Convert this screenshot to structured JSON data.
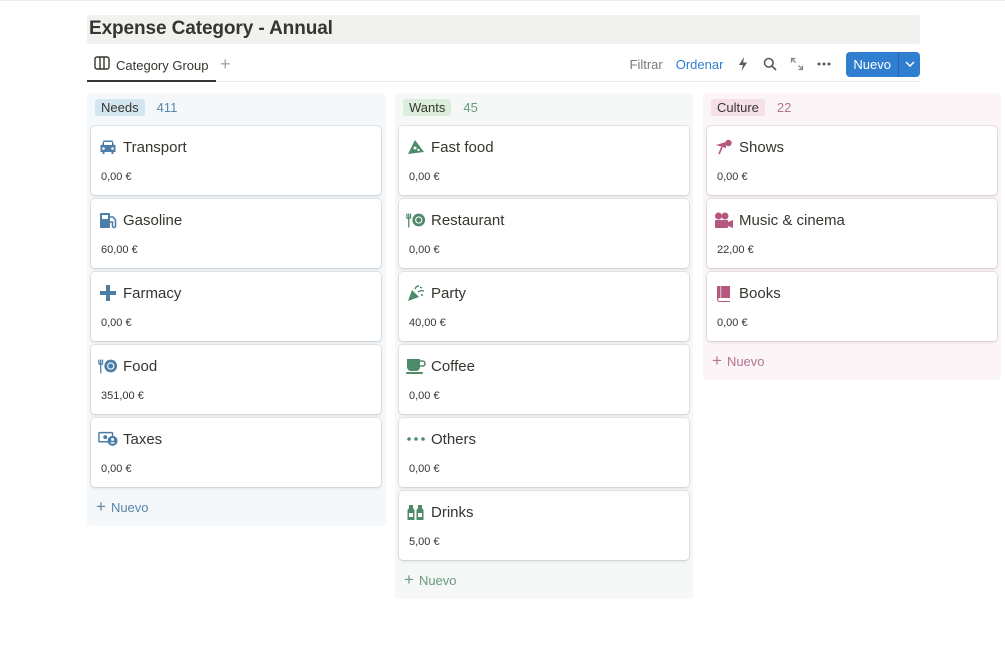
{
  "page": {
    "title": "Expense Category - Annual"
  },
  "tabs": [
    {
      "label": "Category Group",
      "icon": "board-icon"
    }
  ],
  "toolbar": {
    "filter_label": "Filtrar",
    "sort_label": "Ordenar",
    "new_label": "Nuevo",
    "icons": [
      "lightning-icon",
      "search-icon",
      "expand-icon",
      "more-icon"
    ]
  },
  "colors": {
    "accent": "#2f7ed0",
    "needs_tag": "#d3e5ef",
    "needs_text": "#5b87a6",
    "wants_tag": "#dbeddb",
    "wants_text": "#6a9b7e",
    "culture_tag": "#f5e0e9",
    "culture_text": "#b57390"
  },
  "columns": [
    {
      "name": "Needs",
      "count": "411",
      "add_label": "Nuevo",
      "cards": [
        {
          "name": "Transport",
          "value": "0,00 €",
          "icon": "car-icon"
        },
        {
          "name": "Gasoline",
          "value": "60,00 €",
          "icon": "gas-pump-icon"
        },
        {
          "name": "Farmacy",
          "value": "0,00 €",
          "icon": "medical-cross-icon"
        },
        {
          "name": "Food",
          "value": "351,00 €",
          "icon": "plate-utensils-icon"
        },
        {
          "name": "Taxes",
          "value": "0,00 €",
          "icon": "money-person-icon"
        }
      ]
    },
    {
      "name": "Wants",
      "count": "45",
      "add_label": "Nuevo",
      "cards": [
        {
          "name": "Fast food",
          "value": "0,00 €",
          "icon": "pizza-icon"
        },
        {
          "name": "Restaurant",
          "value": "0,00 €",
          "icon": "plate-utensils-icon"
        },
        {
          "name": "Party",
          "value": "40,00 €",
          "icon": "party-popper-icon"
        },
        {
          "name": "Coffee",
          "value": "0,00 €",
          "icon": "coffee-cup-icon"
        },
        {
          "name": "Others",
          "value": "0,00 €",
          "icon": "more-dots-icon"
        },
        {
          "name": "Drinks",
          "value": "5,00 €",
          "icon": "bottles-icon"
        }
      ]
    },
    {
      "name": "Culture",
      "count": "22",
      "add_label": "Nuevo",
      "cards": [
        {
          "name": "Shows",
          "value": "0,00 €",
          "icon": "spotlight-icon"
        },
        {
          "name": "Music & cinema",
          "value": "22,00 €",
          "icon": "film-camera-icon"
        },
        {
          "name": "Books",
          "value": "0,00 €",
          "icon": "book-icon"
        }
      ]
    }
  ]
}
